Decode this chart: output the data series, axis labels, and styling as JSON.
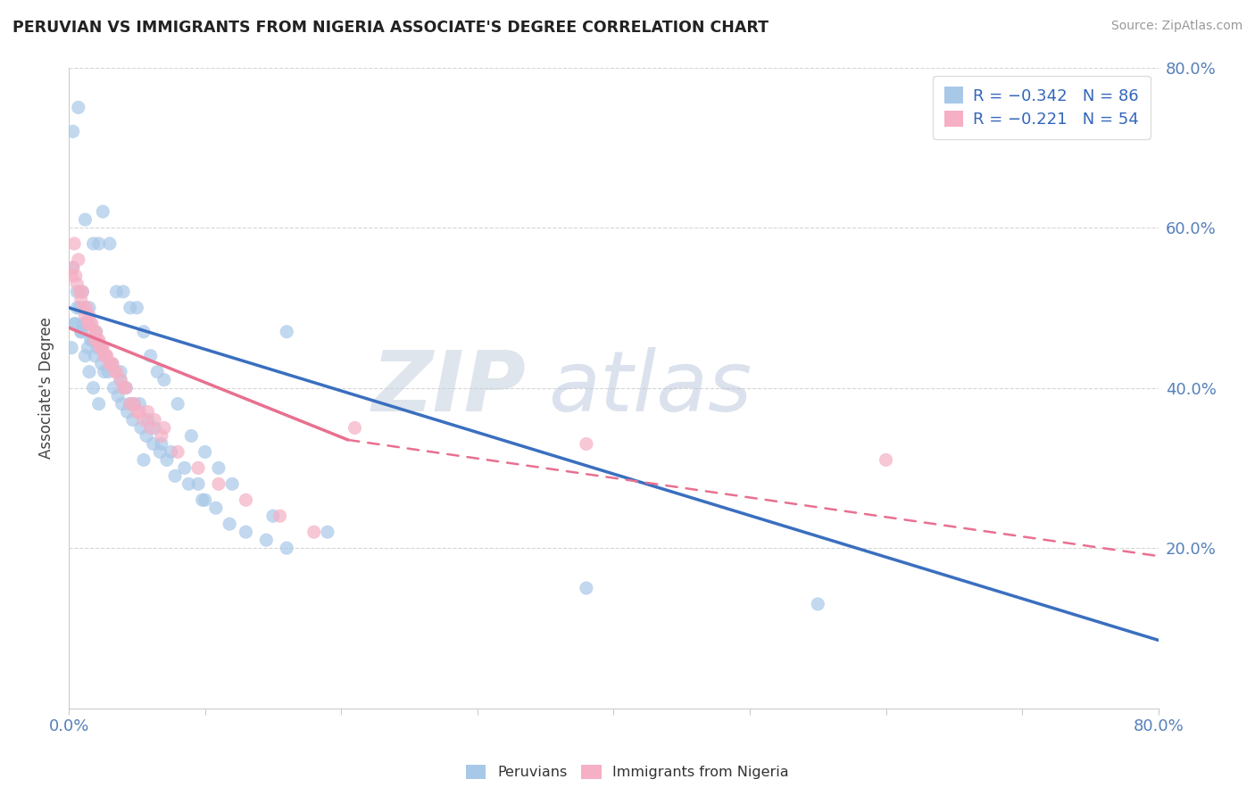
{
  "title": "PERUVIAN VS IMMIGRANTS FROM NIGERIA ASSOCIATE'S DEGREE CORRELATION CHART",
  "source": "Source: ZipAtlas.com",
  "ylabel": "Associate's Degree",
  "legend1_label": "R = −0.342   N = 86",
  "legend2_label": "R = −0.221   N = 54",
  "blue_scatter_color": "#a8c8e8",
  "pink_scatter_color": "#f5b0c5",
  "blue_line_color": "#3a6fbf",
  "pink_line_color": "#e87090",
  "xlim": [
    0.0,
    0.8
  ],
  "ylim": [
    0.0,
    0.8
  ],
  "blue_line": {
    "x0": 0.0,
    "y0": 0.5,
    "x1": 0.8,
    "y1": 0.085
  },
  "pink_solid_line": {
    "x0": 0.0,
    "y0": 0.475,
    "x1": 0.205,
    "y1": 0.335
  },
  "pink_dashed_line": {
    "x0": 0.205,
    "y0": 0.335,
    "x1": 0.8,
    "y1": 0.19
  },
  "peru_x": [
    0.003,
    0.007,
    0.012,
    0.018,
    0.022,
    0.025,
    0.03,
    0.035,
    0.04,
    0.045,
    0.05,
    0.055,
    0.06,
    0.065,
    0.07,
    0.08,
    0.09,
    0.1,
    0.11,
    0.12,
    0.005,
    0.008,
    0.01,
    0.013,
    0.015,
    0.017,
    0.02,
    0.023,
    0.027,
    0.032,
    0.038,
    0.042,
    0.048,
    0.052,
    0.058,
    0.063,
    0.068,
    0.075,
    0.085,
    0.095,
    0.002,
    0.004,
    0.006,
    0.009,
    0.011,
    0.014,
    0.016,
    0.019,
    0.021,
    0.024,
    0.026,
    0.029,
    0.033,
    0.036,
    0.039,
    0.043,
    0.047,
    0.053,
    0.057,
    0.062,
    0.067,
    0.072,
    0.078,
    0.088,
    0.098,
    0.108,
    0.118,
    0.13,
    0.145,
    0.16,
    0.003,
    0.006,
    0.009,
    0.012,
    0.015,
    0.018,
    0.022,
    0.38,
    0.55,
    0.16,
    0.038,
    0.045,
    0.055,
    0.1,
    0.15,
    0.19
  ],
  "peru_y": [
    0.72,
    0.75,
    0.61,
    0.58,
    0.58,
    0.62,
    0.58,
    0.52,
    0.52,
    0.5,
    0.5,
    0.47,
    0.44,
    0.42,
    0.41,
    0.38,
    0.34,
    0.32,
    0.3,
    0.28,
    0.48,
    0.5,
    0.52,
    0.48,
    0.5,
    0.46,
    0.47,
    0.45,
    0.44,
    0.43,
    0.41,
    0.4,
    0.38,
    0.38,
    0.36,
    0.35,
    0.33,
    0.32,
    0.3,
    0.28,
    0.45,
    0.48,
    0.5,
    0.47,
    0.48,
    0.45,
    0.46,
    0.44,
    0.45,
    0.43,
    0.42,
    0.42,
    0.4,
    0.39,
    0.38,
    0.37,
    0.36,
    0.35,
    0.34,
    0.33,
    0.32,
    0.31,
    0.29,
    0.28,
    0.26,
    0.25,
    0.23,
    0.22,
    0.21,
    0.2,
    0.55,
    0.52,
    0.47,
    0.44,
    0.42,
    0.4,
    0.38,
    0.15,
    0.13,
    0.47,
    0.42,
    0.38,
    0.31,
    0.26,
    0.24,
    0.22
  ],
  "nigeria_x": [
    0.002,
    0.005,
    0.008,
    0.01,
    0.013,
    0.015,
    0.017,
    0.02,
    0.022,
    0.025,
    0.028,
    0.032,
    0.035,
    0.038,
    0.042,
    0.048,
    0.052,
    0.058,
    0.063,
    0.07,
    0.003,
    0.006,
    0.009,
    0.012,
    0.016,
    0.018,
    0.021,
    0.024,
    0.027,
    0.031,
    0.004,
    0.007,
    0.011,
    0.014,
    0.019,
    0.023,
    0.026,
    0.03,
    0.034,
    0.04,
    0.045,
    0.05,
    0.055,
    0.06,
    0.068,
    0.08,
    0.095,
    0.11,
    0.13,
    0.155,
    0.18,
    0.21,
    0.38,
    0.6
  ],
  "nigeria_y": [
    0.54,
    0.54,
    0.52,
    0.52,
    0.5,
    0.49,
    0.48,
    0.47,
    0.46,
    0.45,
    0.44,
    0.43,
    0.42,
    0.41,
    0.4,
    0.38,
    0.37,
    0.37,
    0.36,
    0.35,
    0.55,
    0.53,
    0.51,
    0.49,
    0.48,
    0.47,
    0.46,
    0.45,
    0.44,
    0.43,
    0.58,
    0.56,
    0.5,
    0.48,
    0.46,
    0.45,
    0.44,
    0.43,
    0.42,
    0.4,
    0.38,
    0.37,
    0.36,
    0.35,
    0.34,
    0.32,
    0.3,
    0.28,
    0.26,
    0.24,
    0.22,
    0.35,
    0.33,
    0.31
  ]
}
